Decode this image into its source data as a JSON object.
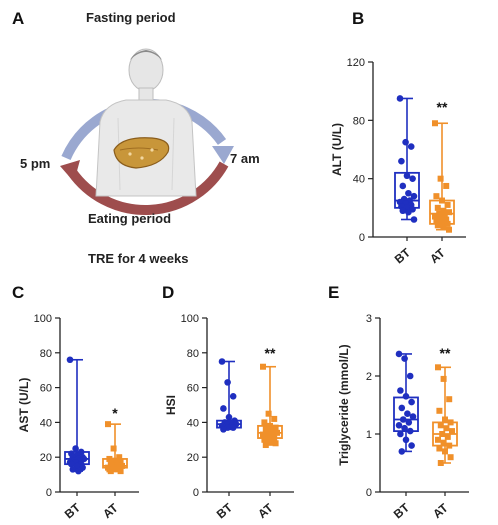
{
  "diagram": {
    "panel": "A",
    "top_label": "Fasting period",
    "left_label": "5 pm",
    "right_label": "7 am",
    "bottom_label": "Eating period",
    "caption": "TRE for 4 weeks",
    "colors": {
      "fasting_arrow": "#9aa8d0",
      "eating_arrow": "#9e4d4d",
      "liver": "#c8963a",
      "body": "#e8e8e8"
    }
  },
  "colors": {
    "BT": "#1f2fc0",
    "AT": "#f0902a"
  },
  "chart_data": [
    {
      "panel": "B",
      "type": "box",
      "ylabel": "ALT (U/L)",
      "ylim": [
        0,
        120
      ],
      "yticks": [
        0,
        40,
        80,
        120
      ],
      "categories": [
        "BT",
        "AT"
      ],
      "significance": "**",
      "series": [
        {
          "name": "BT",
          "min": 12,
          "q1": 20,
          "median": 25,
          "q3": 44,
          "max": 95,
          "points": [
            95,
            65,
            62,
            52,
            42,
            40,
            35,
            30,
            28,
            26,
            25,
            24,
            23,
            22,
            21,
            20,
            19,
            18,
            17,
            12
          ]
        },
        {
          "name": "AT",
          "min": 5,
          "q1": 9,
          "median": 16,
          "q3": 25,
          "max": 78,
          "points": [
            78,
            40,
            35,
            28,
            25,
            22,
            20,
            18,
            17,
            16,
            15,
            14,
            13,
            12,
            11,
            10,
            9,
            8,
            7,
            5
          ]
        }
      ]
    },
    {
      "panel": "C",
      "type": "box",
      "ylabel": "AST (U/L)",
      "ylim": [
        0,
        100
      ],
      "yticks": [
        0,
        20,
        40,
        60,
        80,
        100
      ],
      "categories": [
        "BT",
        "AT"
      ],
      "significance": "*",
      "series": [
        {
          "name": "BT",
          "min": 12,
          "q1": 16,
          "median": 19,
          "q3": 23,
          "max": 76,
          "points": [
            76,
            25,
            23,
            22,
            21,
            20,
            20,
            19,
            19,
            18,
            18,
            17,
            17,
            16,
            16,
            15,
            14,
            13,
            12
          ]
        },
        {
          "name": "AT",
          "min": 12,
          "q1": 14,
          "median": 15,
          "q3": 19,
          "max": 39,
          "points": [
            39,
            25,
            20,
            19,
            18,
            17,
            16,
            16,
            15,
            15,
            15,
            14,
            14,
            14,
            13,
            13,
            12,
            12
          ]
        }
      ]
    },
    {
      "panel": "D",
      "type": "box",
      "ylabel": "HSI",
      "ylim": [
        0,
        100
      ],
      "yticks": [
        0,
        20,
        40,
        60,
        80,
        100
      ],
      "categories": [
        "BT",
        "AT"
      ],
      "significance": "**",
      "series": [
        {
          "name": "BT",
          "min": 36,
          "q1": 37,
          "median": 39,
          "q3": 41,
          "max": 75,
          "points": [
            75,
            63,
            55,
            48,
            43,
            41,
            40,
            40,
            39,
            39,
            38,
            38,
            37,
            37,
            36
          ]
        },
        {
          "name": "AT",
          "min": 27,
          "q1": 31,
          "median": 34,
          "q3": 38,
          "max": 72,
          "points": [
            72,
            45,
            42,
            40,
            38,
            37,
            36,
            35,
            34,
            34,
            33,
            33,
            32,
            31,
            30,
            29,
            28,
            27
          ]
        }
      ]
    },
    {
      "panel": "E",
      "type": "box",
      "ylabel": "Triglyceride (mmol/L)",
      "ylim": [
        0,
        3
      ],
      "yticks": [
        0,
        1,
        2,
        3
      ],
      "categories": [
        "BT",
        "AT"
      ],
      "significance": "**",
      "series": [
        {
          "name": "BT",
          "min": 0.7,
          "q1": 1.05,
          "median": 1.25,
          "q3": 1.63,
          "max": 2.38,
          "points": [
            2.38,
            2.3,
            2.0,
            1.75,
            1.65,
            1.55,
            1.45,
            1.35,
            1.3,
            1.25,
            1.2,
            1.15,
            1.1,
            1.05,
            1.0,
            0.9,
            0.8,
            0.7
          ]
        },
        {
          "name": "AT",
          "min": 0.5,
          "q1": 0.8,
          "median": 1.0,
          "q3": 1.2,
          "max": 2.15,
          "points": [
            2.15,
            1.95,
            1.6,
            1.4,
            1.25,
            1.2,
            1.15,
            1.1,
            1.05,
            1.0,
            0.95,
            0.9,
            0.85,
            0.8,
            0.75,
            0.7,
            0.6,
            0.5
          ]
        }
      ]
    }
  ]
}
